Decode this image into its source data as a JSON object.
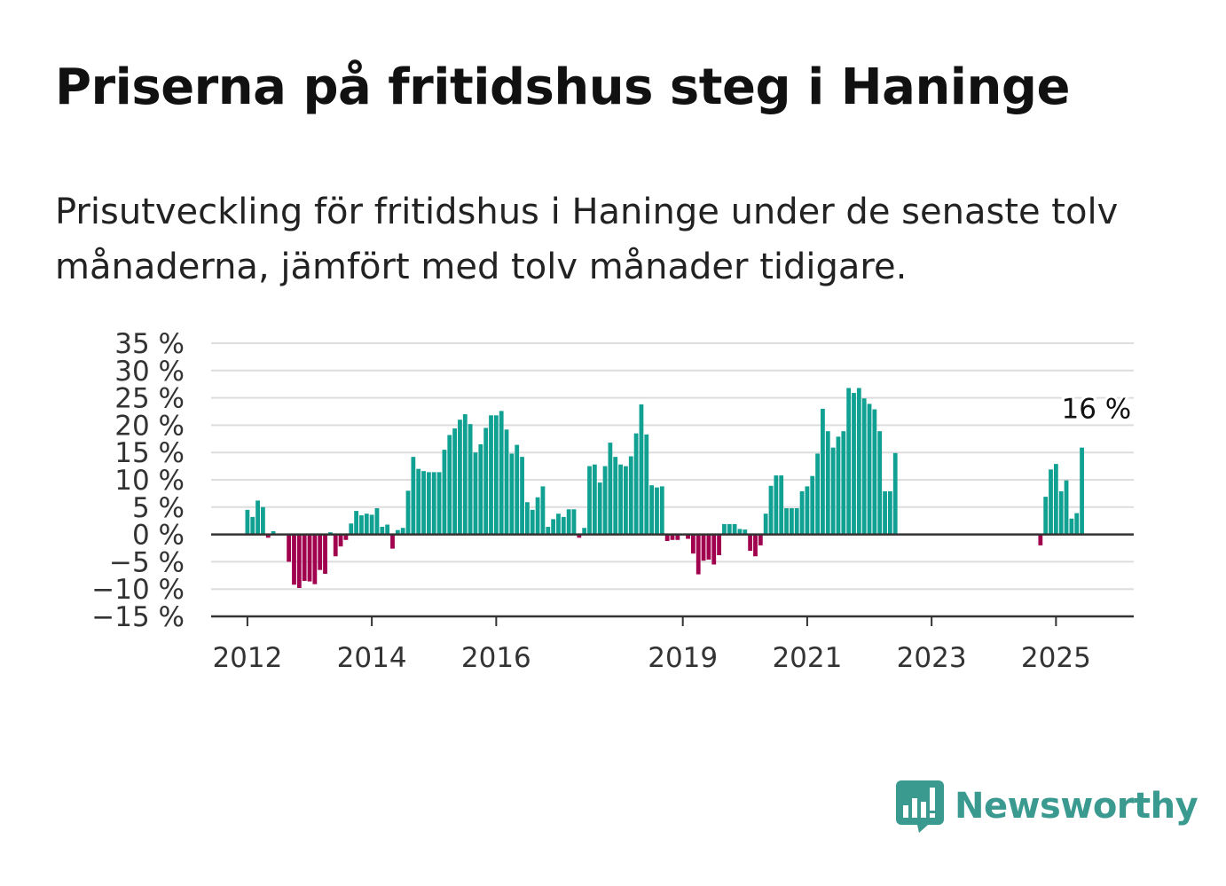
{
  "title": "Priserna på fritidshus steg i Haninge",
  "subtitle": "Prisutveckling för fritidshus i Haninge under de senaste tolv månaderna, jämfört med tolv månader tidigare.",
  "brand": {
    "name": "Newsworthy",
    "color": "#3a9a90"
  },
  "colors": {
    "positive": "#11a193",
    "negative": "#a0004e",
    "grid": "#dddddd",
    "axis": "#333333"
  },
  "chart_data": {
    "type": "bar",
    "title": "Priserna på fritidshus steg i Haninge",
    "subtitle": "Prisutveckling för fritidshus i Haninge under de senaste tolv månaderna, jämfört med tolv månader tidigare.",
    "xlabel": "",
    "ylabel": "",
    "ylim": [
      -15,
      35
    ],
    "yticks": [
      35,
      30,
      25,
      20,
      15,
      10,
      5,
      0,
      -5,
      -10,
      -15
    ],
    "ytick_labels": [
      "35 %",
      "30 %",
      "25 %",
      "20 %",
      "15 %",
      "10 %",
      "5 %",
      "0 %",
      "−5 %",
      "−10 %",
      "−15 %"
    ],
    "xticks": [
      "2012",
      "2014",
      "2016",
      "2019",
      "2021",
      "2023",
      "2025"
    ],
    "xrange": [
      "2011-06",
      "2026-04"
    ],
    "grid": true,
    "annotation": {
      "text": "16 %",
      "at": "2025-04"
    },
    "series": [
      {
        "values": [
          {
            "x": "2012-01",
            "y": 4.5
          },
          {
            "x": "2012-02",
            "y": 3.2
          },
          {
            "x": "2012-03",
            "y": 6.2
          },
          {
            "x": "2012-04",
            "y": 5.0
          },
          {
            "x": "2012-05",
            "y": -0.6
          },
          {
            "x": "2012-06",
            "y": 0.6
          },
          {
            "x": "2012-09",
            "y": -5.0
          },
          {
            "x": "2012-10",
            "y": -9.2
          },
          {
            "x": "2012-11",
            "y": -9.8
          },
          {
            "x": "2012-12",
            "y": -8.5
          },
          {
            "x": "2013-01",
            "y": -8.6
          },
          {
            "x": "2013-02",
            "y": -9.1
          },
          {
            "x": "2013-03",
            "y": -6.5
          },
          {
            "x": "2013-04",
            "y": -7.2
          },
          {
            "x": "2013-05",
            "y": 0.4
          },
          {
            "x": "2013-06",
            "y": -4.0
          },
          {
            "x": "2013-07",
            "y": -2.2
          },
          {
            "x": "2013-08",
            "y": -1.0
          },
          {
            "x": "2013-09",
            "y": 2.0
          },
          {
            "x": "2013-10",
            "y": 4.3
          },
          {
            "x": "2013-11",
            "y": 3.5
          },
          {
            "x": "2013-12",
            "y": 3.8
          },
          {
            "x": "2014-01",
            "y": 3.6
          },
          {
            "x": "2014-02",
            "y": 4.8
          },
          {
            "x": "2014-03",
            "y": 1.4
          },
          {
            "x": "2014-04",
            "y": 1.8
          },
          {
            "x": "2014-05",
            "y": -2.6
          },
          {
            "x": "2014-06",
            "y": 0.8
          },
          {
            "x": "2014-07",
            "y": 1.2
          },
          {
            "x": "2014-08",
            "y": 8.0
          },
          {
            "x": "2014-09",
            "y": 14.2
          },
          {
            "x": "2014-10",
            "y": 12.0
          },
          {
            "x": "2014-11",
            "y": 11.6
          },
          {
            "x": "2014-12",
            "y": 11.4
          },
          {
            "x": "2015-01",
            "y": 11.4
          },
          {
            "x": "2015-02",
            "y": 11.4
          },
          {
            "x": "2015-03",
            "y": 15.5
          },
          {
            "x": "2015-04",
            "y": 18.2
          },
          {
            "x": "2015-05",
            "y": 19.4
          },
          {
            "x": "2015-06",
            "y": 21.0
          },
          {
            "x": "2015-07",
            "y": 22.0
          },
          {
            "x": "2015-08",
            "y": 20.2
          },
          {
            "x": "2015-09",
            "y": 15.0
          },
          {
            "x": "2015-10",
            "y": 16.5
          },
          {
            "x": "2015-11",
            "y": 19.5
          },
          {
            "x": "2015-12",
            "y": 21.8
          },
          {
            "x": "2016-01",
            "y": 21.8
          },
          {
            "x": "2016-02",
            "y": 22.6
          },
          {
            "x": "2016-03",
            "y": 19.2
          },
          {
            "x": "2016-04",
            "y": 14.8
          },
          {
            "x": "2016-05",
            "y": 16.4
          },
          {
            "x": "2016-06",
            "y": 14.2
          },
          {
            "x": "2016-07",
            "y": 5.9
          },
          {
            "x": "2016-08",
            "y": 4.5
          },
          {
            "x": "2016-09",
            "y": 6.8
          },
          {
            "x": "2016-10",
            "y": 8.8
          },
          {
            "x": "2016-11",
            "y": 1.4
          },
          {
            "x": "2016-12",
            "y": 2.8
          },
          {
            "x": "2017-01",
            "y": 3.8
          },
          {
            "x": "2017-02",
            "y": 3.2
          },
          {
            "x": "2017-03",
            "y": 4.6
          },
          {
            "x": "2017-04",
            "y": 4.6
          },
          {
            "x": "2017-05",
            "y": -0.6
          },
          {
            "x": "2017-06",
            "y": 1.2
          },
          {
            "x": "2017-07",
            "y": 12.5
          },
          {
            "x": "2017-08",
            "y": 12.8
          },
          {
            "x": "2017-09",
            "y": 9.5
          },
          {
            "x": "2017-10",
            "y": 12.5
          },
          {
            "x": "2017-11",
            "y": 16.8
          },
          {
            "x": "2017-12",
            "y": 14.2
          },
          {
            "x": "2018-01",
            "y": 12.8
          },
          {
            "x": "2018-02",
            "y": 12.5
          },
          {
            "x": "2018-03",
            "y": 14.3
          },
          {
            "x": "2018-04",
            "y": 18.5
          },
          {
            "x": "2018-05",
            "y": 23.8
          },
          {
            "x": "2018-06",
            "y": 18.3
          },
          {
            "x": "2018-07",
            "y": 9.0
          },
          {
            "x": "2018-08",
            "y": 8.6
          },
          {
            "x": "2018-09",
            "y": 8.8
          },
          {
            "x": "2018-10",
            "y": -1.2
          },
          {
            "x": "2018-11",
            "y": -1.0
          },
          {
            "x": "2018-12",
            "y": -1.0
          },
          {
            "x": "2019-02",
            "y": -0.8
          },
          {
            "x": "2019-03",
            "y": -3.5
          },
          {
            "x": "2019-04",
            "y": -7.3
          },
          {
            "x": "2019-05",
            "y": -4.8
          },
          {
            "x": "2019-06",
            "y": -4.6
          },
          {
            "x": "2019-07",
            "y": -5.5
          },
          {
            "x": "2019-08",
            "y": -3.8
          },
          {
            "x": "2019-09",
            "y": 1.9
          },
          {
            "x": "2019-10",
            "y": 1.9
          },
          {
            "x": "2019-11",
            "y": 1.9
          },
          {
            "x": "2019-12",
            "y": 1.0
          },
          {
            "x": "2020-01",
            "y": 0.9
          },
          {
            "x": "2020-02",
            "y": -3.0
          },
          {
            "x": "2020-03",
            "y": -4.0
          },
          {
            "x": "2020-04",
            "y": -2.0
          },
          {
            "x": "2020-05",
            "y": 3.8
          },
          {
            "x": "2020-06",
            "y": 8.9
          },
          {
            "x": "2020-07",
            "y": 10.8
          },
          {
            "x": "2020-08",
            "y": 10.8
          },
          {
            "x": "2020-09",
            "y": 4.8
          },
          {
            "x": "2020-10",
            "y": 4.8
          },
          {
            "x": "2020-11",
            "y": 4.8
          },
          {
            "x": "2020-12",
            "y": 7.9
          },
          {
            "x": "2021-01",
            "y": 8.8
          },
          {
            "x": "2021-02",
            "y": 10.7
          },
          {
            "x": "2021-03",
            "y": 14.8
          },
          {
            "x": "2021-04",
            "y": 23.0
          },
          {
            "x": "2021-05",
            "y": 18.9
          },
          {
            "x": "2021-06",
            "y": 15.9
          },
          {
            "x": "2021-07",
            "y": 17.9
          },
          {
            "x": "2021-08",
            "y": 18.9
          },
          {
            "x": "2021-09",
            "y": 26.8
          },
          {
            "x": "2021-10",
            "y": 25.9
          },
          {
            "x": "2021-11",
            "y": 26.8
          },
          {
            "x": "2021-12",
            "y": 24.9
          },
          {
            "x": "2022-01",
            "y": 23.9
          },
          {
            "x": "2022-02",
            "y": 22.9
          },
          {
            "x": "2022-03",
            "y": 18.9
          },
          {
            "x": "2022-04",
            "y": 7.9
          },
          {
            "x": "2022-05",
            "y": 7.9
          },
          {
            "x": "2022-06",
            "y": 14.9
          },
          {
            "x": "2024-10",
            "y": -2.0
          },
          {
            "x": "2024-11",
            "y": 6.9
          },
          {
            "x": "2024-12",
            "y": 11.9
          },
          {
            "x": "2025-01",
            "y": 12.9
          },
          {
            "x": "2025-02",
            "y": 7.9
          },
          {
            "x": "2025-03",
            "y": 9.9
          },
          {
            "x": "2025-04",
            "y": 2.9
          },
          {
            "x": "2025-05",
            "y": 3.9
          },
          {
            "x": "2025-06",
            "y": 15.9
          }
        ]
      }
    ]
  }
}
